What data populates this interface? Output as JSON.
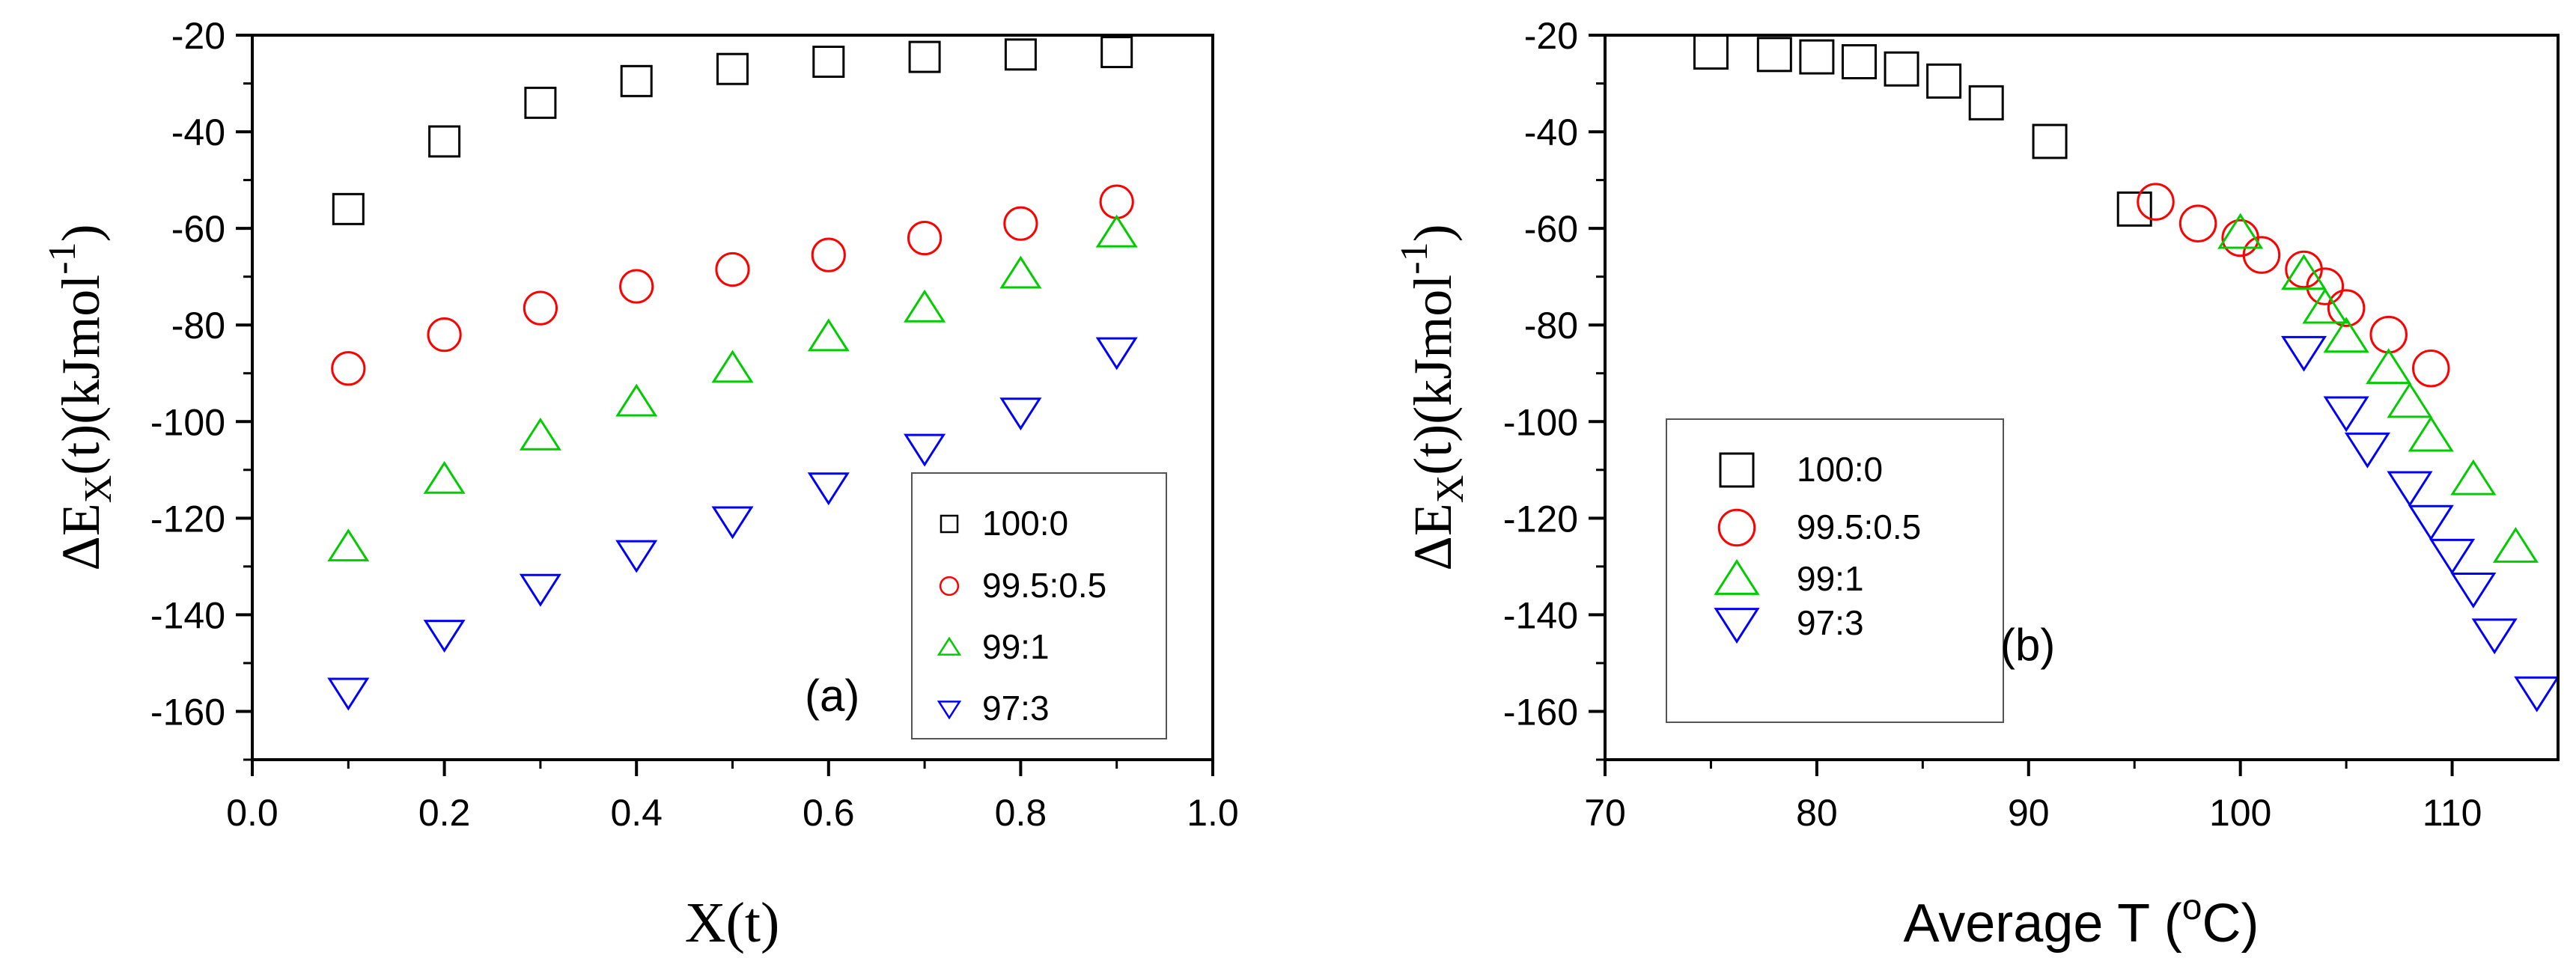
{
  "chart_data": [
    {
      "type": "scatter",
      "panel_label": "(a)",
      "xlabel": "X(t)",
      "ylabel_parts": {
        "base": "ΔE",
        "sub": "X",
        "mid": "(t)(kJmol",
        "sup": "-1",
        "end": ")"
      },
      "xlim": [
        0.0,
        1.0
      ],
      "ylim": [
        -170,
        -20
      ],
      "xticks": [
        0.0,
        0.2,
        0.4,
        0.6,
        0.8,
        1.0
      ],
      "xtick_labels": [
        "0.0",
        "0.2",
        "0.4",
        "0.6",
        "0.8",
        "1.0"
      ],
      "yticks": [
        -20,
        -40,
        -60,
        -80,
        -100,
        -120,
        -140,
        -160
      ],
      "ytick_labels": [
        "-20",
        "-40",
        "-60",
        "-80",
        "-100",
        "-120",
        "-140",
        "-160"
      ],
      "legend_position": "bottom-right",
      "series": [
        {
          "name": "100:0",
          "marker": "square",
          "color": "#000000",
          "x": [
            0.1,
            0.2,
            0.3,
            0.4,
            0.5,
            0.6,
            0.7,
            0.8,
            0.9
          ],
          "y": [
            -56,
            -42,
            -34,
            -29.5,
            -27,
            -25.5,
            -24.5,
            -24,
            -23.5
          ]
        },
        {
          "name": "99.5:0.5",
          "marker": "circle",
          "color": "#ff0000",
          "x": [
            0.1,
            0.2,
            0.3,
            0.4,
            0.5,
            0.6,
            0.7,
            0.8,
            0.9
          ],
          "y": [
            -89,
            -82,
            -76.5,
            -72,
            -68.5,
            -65.5,
            -62,
            -59,
            -54.5
          ]
        },
        {
          "name": "99:1",
          "marker": "triangle-up",
          "color": "#00cc00",
          "x": [
            0.1,
            0.2,
            0.3,
            0.4,
            0.5,
            0.6,
            0.7,
            0.8,
            0.9
          ],
          "y": [
            -126,
            -112,
            -103,
            -96,
            -89,
            -82.5,
            -76.5,
            -69.5,
            -61
          ]
        },
        {
          "name": "97:3",
          "marker": "triangle-down",
          "color": "#0000ff",
          "x": [
            0.1,
            0.2,
            0.3,
            0.4,
            0.5,
            0.6,
            0.7,
            0.8,
            0.9
          ],
          "y": [
            -156,
            -144,
            -134.5,
            -127.5,
            -120.5,
            -113.5,
            -105.5,
            -98,
            -85.5
          ]
        }
      ]
    },
    {
      "type": "scatter",
      "panel_label": "(b)",
      "xlabel_parts": {
        "pre": "Average T (",
        "sup": "o",
        "post": "C)"
      },
      "ylabel_parts": {
        "base": "ΔE",
        "sub": "X",
        "mid": "(t)(kJmol",
        "sup": "-1",
        "end": ")"
      },
      "xlim": [
        70,
        115
      ],
      "ylim": [
        -170,
        -20
      ],
      "xticks": [
        70,
        80,
        90,
        100,
        110
      ],
      "xtick_labels": [
        "70",
        "80",
        "90",
        "100",
        "110"
      ],
      "yticks": [
        -20,
        -40,
        -60,
        -80,
        -100,
        -120,
        -140,
        -160
      ],
      "ytick_labels": [
        "-20",
        "-40",
        "-60",
        "-80",
        "-100",
        "-120",
        "-140",
        "-160"
      ],
      "legend_position": "bottom-left",
      "series": [
        {
          "name": "100:0",
          "marker": "square",
          "color": "#000000",
          "x": [
            75,
            78,
            80,
            82,
            84,
            86,
            88,
            91,
            95
          ],
          "y": [
            -23.5,
            -24,
            -24.5,
            -25.5,
            -27,
            -29.5,
            -34,
            -42,
            -56
          ]
        },
        {
          "name": "99.5:0.5",
          "marker": "circle",
          "color": "#ff0000",
          "x": [
            96,
            98,
            100,
            101,
            103,
            104,
            105,
            107,
            109
          ],
          "y": [
            -54.5,
            -59,
            -62,
            -65.5,
            -68.5,
            -72,
            -76.5,
            -82,
            -89
          ]
        },
        {
          "name": "99:1",
          "marker": "triangle-up",
          "color": "#00cc00",
          "x": [
            100,
            103,
            104,
            105,
            107,
            108,
            109,
            111,
            113
          ],
          "y": [
            -61,
            -69.5,
            -76.5,
            -82.5,
            -89,
            -96,
            -103,
            -112,
            -126
          ]
        },
        {
          "name": "97:3",
          "marker": "triangle-down",
          "color": "#0000ff",
          "x": [
            103,
            105,
            106,
            108,
            109,
            110,
            111,
            112,
            114
          ],
          "y": [
            -85.5,
            -98,
            -105.5,
            -113.5,
            -120.5,
            -127.5,
            -134.5,
            -144,
            -156
          ]
        }
      ]
    }
  ]
}
